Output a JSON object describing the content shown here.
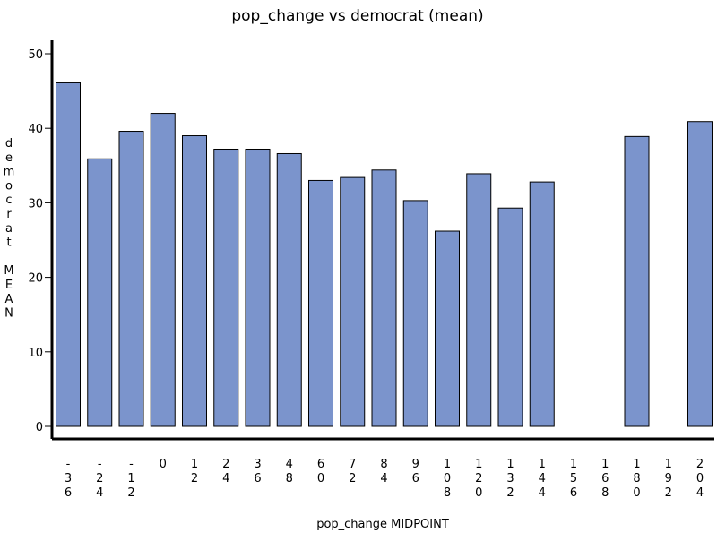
{
  "chart_data": {
    "type": "bar",
    "title": "pop_change vs democrat (mean)",
    "xlabel": "pop_change MIDPOINT",
    "ylabel": "democrat MEAN",
    "ylim": [
      0,
      50
    ],
    "y_ticks": [
      0,
      10,
      20,
      30,
      40,
      50
    ],
    "categories": [
      "-36",
      "-24",
      "-12",
      "0",
      "12",
      "24",
      "36",
      "48",
      "60",
      "72",
      "84",
      "96",
      "108",
      "120",
      "132",
      "144",
      "156",
      "168",
      "180",
      "192",
      "204"
    ],
    "values": [
      46.1,
      35.9,
      39.6,
      42.0,
      39.0,
      37.2,
      37.2,
      36.6,
      33.0,
      33.4,
      34.4,
      30.3,
      26.2,
      33.9,
      29.3,
      32.8,
      null,
      null,
      38.9,
      null,
      40.9
    ],
    "grid": false,
    "legend": "none"
  },
  "colors": {
    "bar_fill": "#7b94cc",
    "bar_stroke": "#000000",
    "axis": "#000000",
    "background": "#ffffff"
  }
}
